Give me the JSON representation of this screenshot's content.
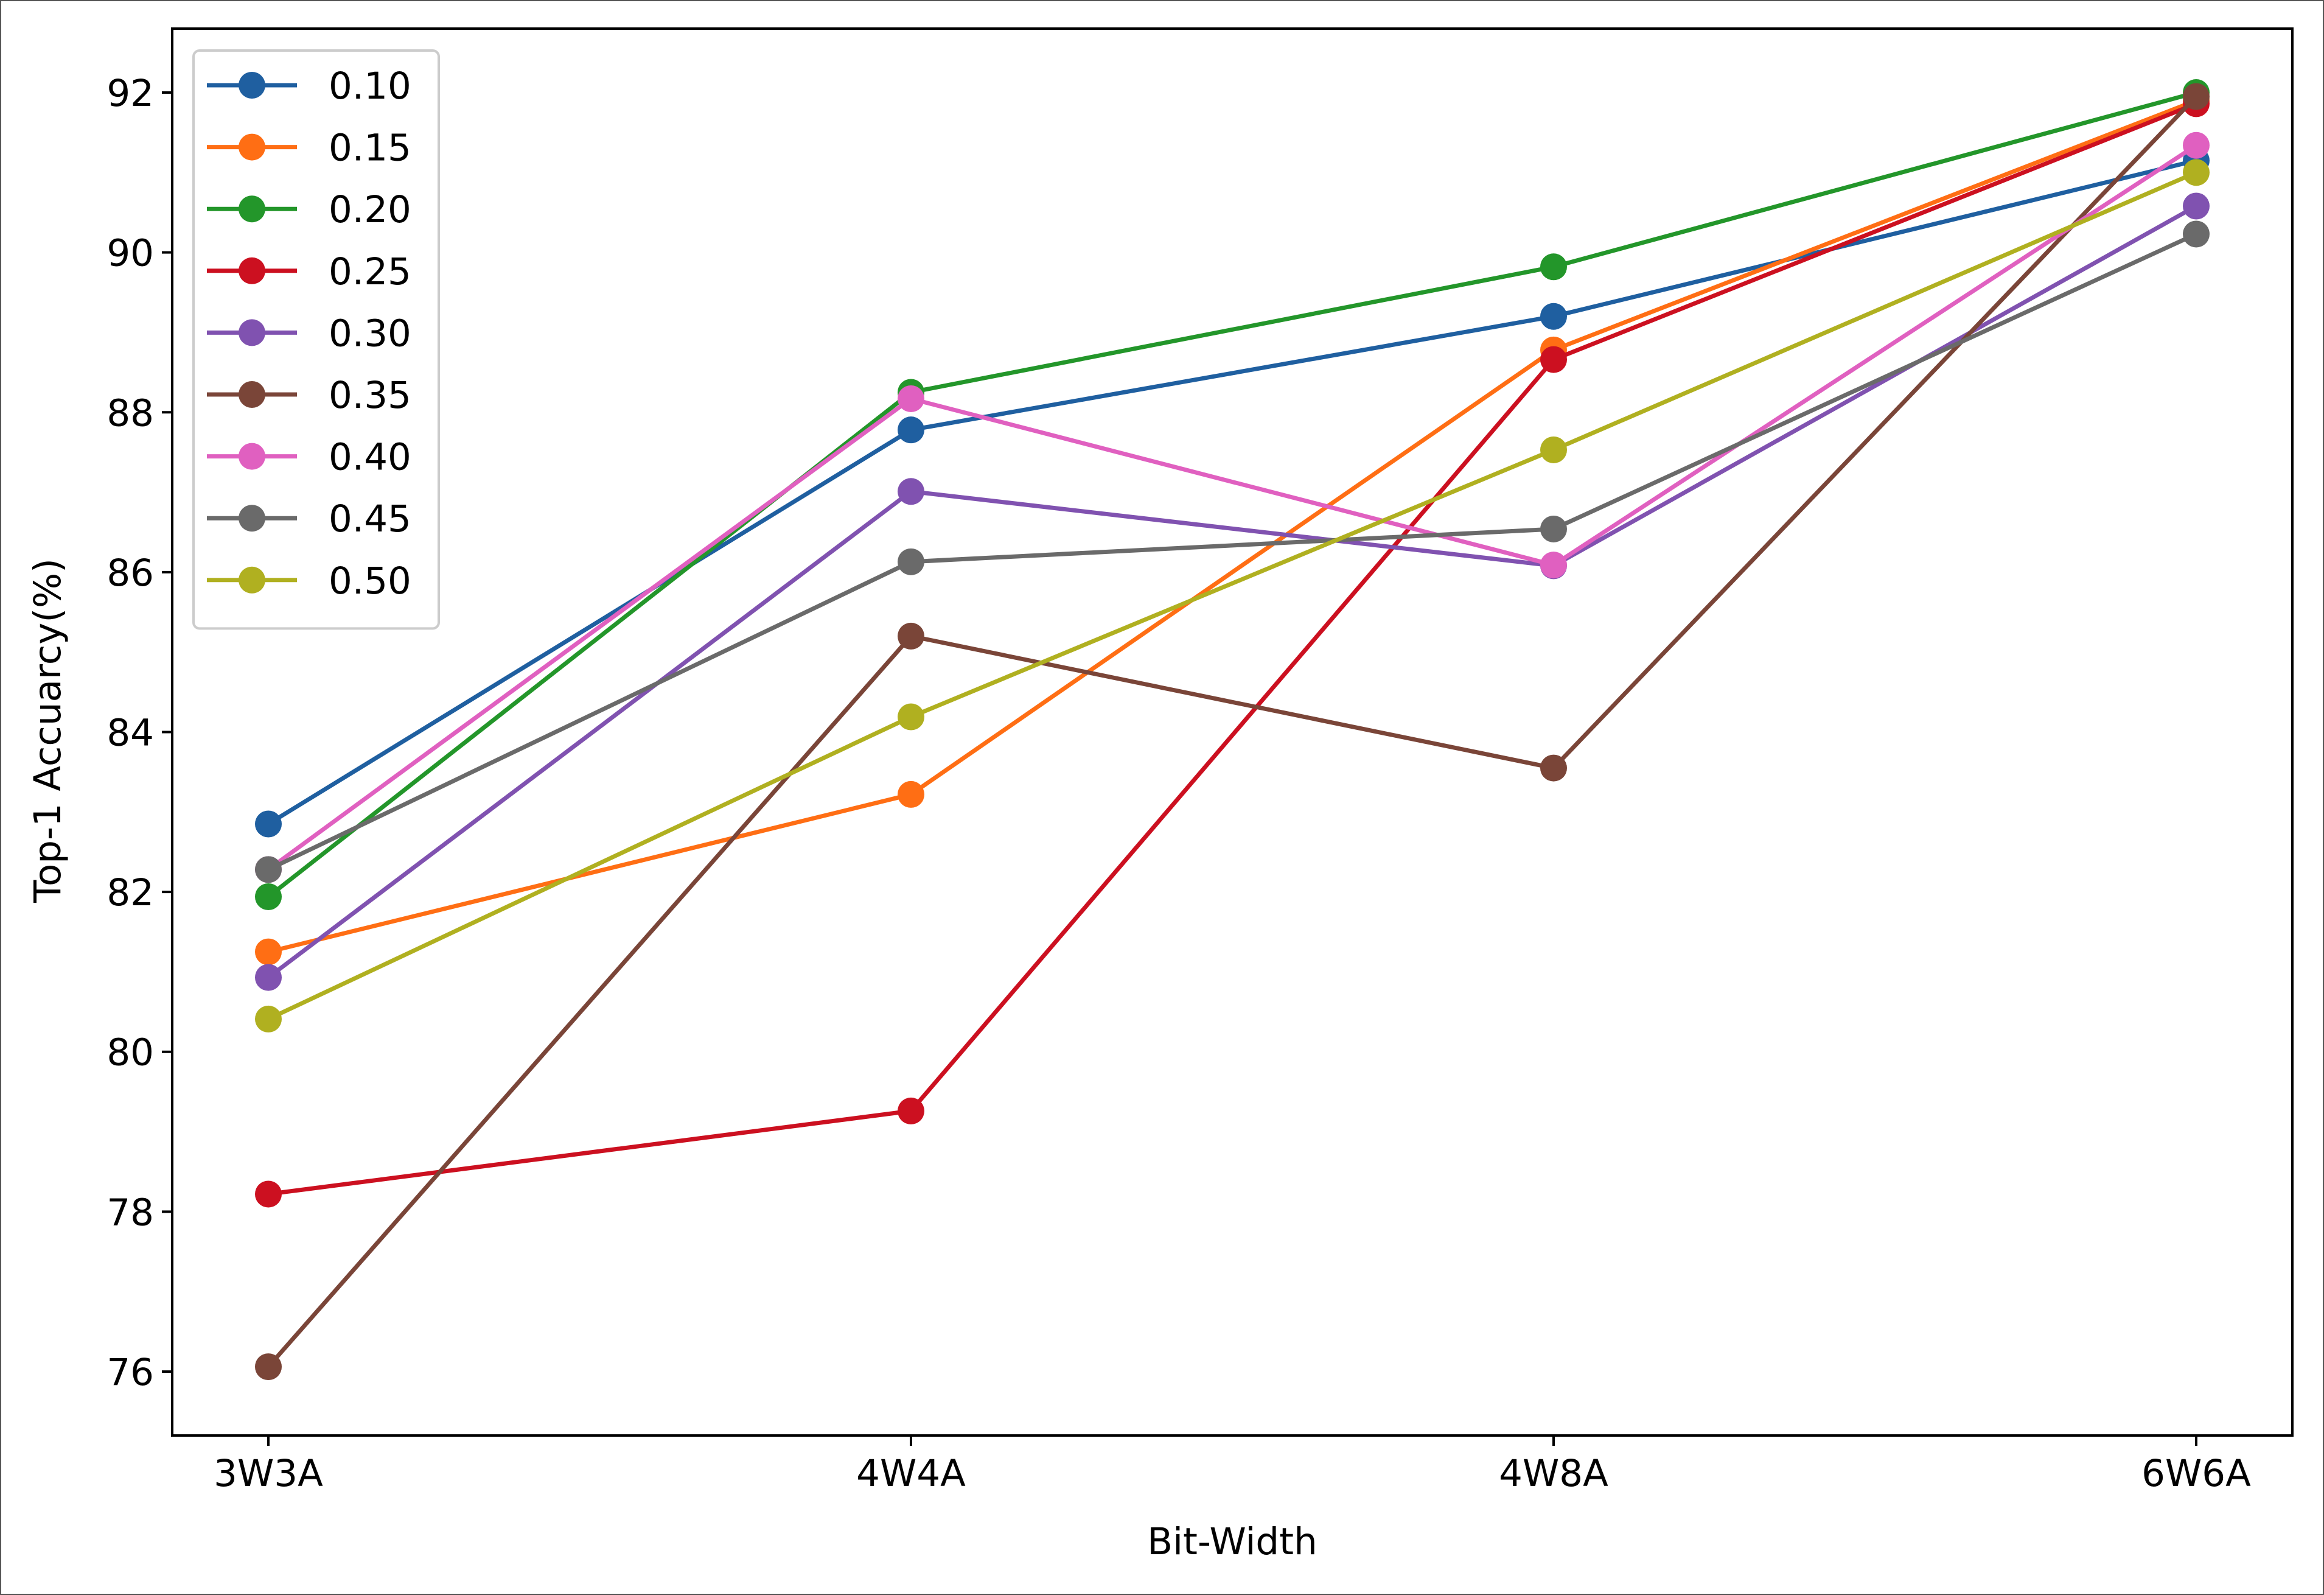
{
  "chart_data": {
    "type": "line",
    "title": "",
    "xlabel": "Bit-Width",
    "ylabel": "Top-1 Accuarcy(%)",
    "categories": [
      "3W3A",
      "4W4A",
      "4W8A",
      "6W6A"
    ],
    "ylim": [
      75.2,
      92.8
    ],
    "yticks": [
      76,
      78,
      80,
      82,
      84,
      86,
      88,
      90,
      92
    ],
    "ytick_labels": [
      "76",
      "78",
      "80",
      "82",
      "84",
      "86",
      "88",
      "90",
      "92"
    ],
    "grid": false,
    "legend_position": "top-left",
    "marker": "circle",
    "series": [
      {
        "name": "0.10",
        "color": "#1f5fa0",
        "values": [
          82.85,
          87.78,
          89.2,
          91.15
        ]
      },
      {
        "name": "0.15",
        "color": "#ff6e14",
        "values": [
          81.25,
          83.22,
          88.78,
          91.9
        ]
      },
      {
        "name": "0.20",
        "color": "#23962a",
        "values": [
          81.94,
          88.25,
          89.82,
          92.0
        ]
      },
      {
        "name": "0.25",
        "color": "#cc1020",
        "values": [
          78.22,
          79.26,
          88.66,
          91.86
        ]
      },
      {
        "name": "0.30",
        "color": "#8052b0",
        "values": [
          80.93,
          87.01,
          86.08,
          90.58
        ]
      },
      {
        "name": "0.35",
        "color": "#7a4538",
        "values": [
          76.06,
          85.2,
          83.55,
          91.95
        ]
      },
      {
        "name": "0.40",
        "color": "#e060c0",
        "values": [
          82.28,
          88.17,
          86.09,
          91.34
        ]
      },
      {
        "name": "0.45",
        "color": "#6a6a6a",
        "values": [
          82.28,
          86.13,
          86.54,
          90.23
        ]
      },
      {
        "name": "0.50",
        "color": "#b0b020",
        "values": [
          80.41,
          84.19,
          87.53,
          91.0
        ]
      }
    ]
  }
}
